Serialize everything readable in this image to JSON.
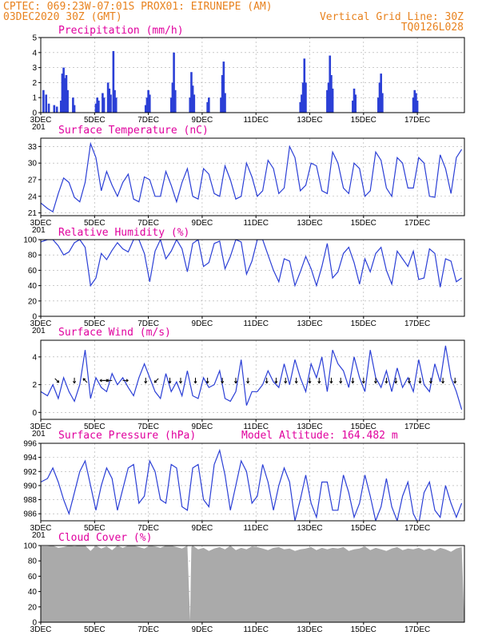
{
  "header": {
    "line1_left": "CPTEC:   069:23W-07:01S   PROX01: EIRUNEPE (AM)",
    "line2_left": "03DEC2020 30Z (GMT)",
    "line2_right": "Vertical Grid Line: 30Z",
    "line3_right": "TQ0126L028"
  },
  "colors": {
    "header": "#e8821e",
    "title": "#e0009e",
    "series": "#2b3fd6",
    "cloud": "#aaaaaa"
  },
  "x_axis": {
    "start_label_fragment": "201",
    "ticks": [
      "3DEC",
      "5DEC",
      "7DEC",
      "9DEC",
      "11DEC",
      "13DEC",
      "15DEC",
      "17DEC"
    ]
  },
  "chart_data": [
    {
      "id": "precip",
      "type": "bar",
      "title": "Precipitation (mm/h)",
      "ylim": [
        0,
        5
      ],
      "yticks": [
        0,
        1,
        2,
        3,
        4,
        5
      ],
      "days_span": [
        3,
        18.75
      ],
      "events": [
        {
          "day": 3.1,
          "value": 1.5
        },
        {
          "day": 3.2,
          "value": 1.2
        },
        {
          "day": 3.3,
          "value": 0.6
        },
        {
          "day": 3.5,
          "value": 0.5
        },
        {
          "day": 3.6,
          "value": 0.4
        },
        {
          "day": 3.75,
          "value": 0.8
        },
        {
          "day": 3.8,
          "value": 2.6
        },
        {
          "day": 3.85,
          "value": 3.0
        },
        {
          "day": 3.9,
          "value": 2.3
        },
        {
          "day": 3.95,
          "value": 2.5
        },
        {
          "day": 4.0,
          "value": 1.5
        },
        {
          "day": 4.2,
          "value": 1.0
        },
        {
          "day": 4.25,
          "value": 0.5
        },
        {
          "day": 5.05,
          "value": 0.6
        },
        {
          "day": 5.1,
          "value": 1.0
        },
        {
          "day": 5.15,
          "value": 0.8
        },
        {
          "day": 5.3,
          "value": 1.3
        },
        {
          "day": 5.35,
          "value": 1.0
        },
        {
          "day": 5.5,
          "value": 2.0
        },
        {
          "day": 5.55,
          "value": 1.6
        },
        {
          "day": 5.6,
          "value": 1.2
        },
        {
          "day": 5.7,
          "value": 4.1
        },
        {
          "day": 5.75,
          "value": 1.5
        },
        {
          "day": 5.8,
          "value": 1.0
        },
        {
          "day": 6.9,
          "value": 0.5
        },
        {
          "day": 6.95,
          "value": 1.0
        },
        {
          "day": 7.0,
          "value": 1.5
        },
        {
          "day": 7.05,
          "value": 1.2
        },
        {
          "day": 7.85,
          "value": 1.0
        },
        {
          "day": 7.9,
          "value": 2.0
        },
        {
          "day": 7.95,
          "value": 4.0
        },
        {
          "day": 8.0,
          "value": 1.5
        },
        {
          "day": 8.55,
          "value": 1.0
        },
        {
          "day": 8.6,
          "value": 2.7
        },
        {
          "day": 8.65,
          "value": 1.8
        },
        {
          "day": 8.7,
          "value": 1.2
        },
        {
          "day": 9.2,
          "value": 0.7
        },
        {
          "day": 9.25,
          "value": 1.0
        },
        {
          "day": 9.7,
          "value": 1.0
        },
        {
          "day": 9.75,
          "value": 2.5
        },
        {
          "day": 9.8,
          "value": 3.4
        },
        {
          "day": 9.85,
          "value": 1.3
        },
        {
          "day": 12.65,
          "value": 0.7
        },
        {
          "day": 12.7,
          "value": 1.2
        },
        {
          "day": 12.75,
          "value": 2.0
        },
        {
          "day": 12.8,
          "value": 3.6
        },
        {
          "day": 12.85,
          "value": 2.0
        },
        {
          "day": 13.65,
          "value": 1.5
        },
        {
          "day": 13.7,
          "value": 2.0
        },
        {
          "day": 13.75,
          "value": 3.8
        },
        {
          "day": 13.8,
          "value": 2.5
        },
        {
          "day": 13.85,
          "value": 1.6
        },
        {
          "day": 14.6,
          "value": 0.8
        },
        {
          "day": 14.65,
          "value": 1.6
        },
        {
          "day": 14.7,
          "value": 1.2
        },
        {
          "day": 15.55,
          "value": 1.0
        },
        {
          "day": 15.6,
          "value": 2.0
        },
        {
          "day": 15.65,
          "value": 2.6
        },
        {
          "day": 15.7,
          "value": 1.3
        },
        {
          "day": 16.85,
          "value": 1.0
        },
        {
          "day": 16.9,
          "value": 1.5
        },
        {
          "day": 16.95,
          "value": 1.3
        },
        {
          "day": 17.0,
          "value": 0.8
        }
      ]
    },
    {
      "id": "temp",
      "type": "line",
      "title": "Surface Temperature (nC)",
      "ylim": [
        20.5,
        34.5
      ],
      "yticks": [
        21,
        24,
        27,
        30,
        33
      ],
      "days": [
        3.0,
        3.25,
        3.45,
        3.65,
        3.85,
        4.05,
        4.25,
        4.45,
        4.65,
        4.85,
        5.05,
        5.25,
        5.45,
        5.65,
        5.85,
        6.05,
        6.25,
        6.45,
        6.65,
        6.85,
        7.05,
        7.25,
        7.45,
        7.65,
        7.85,
        8.05,
        8.25,
        8.45,
        8.65,
        8.85,
        9.05,
        9.25,
        9.45,
        9.65,
        9.85,
        10.05,
        10.25,
        10.45,
        10.65,
        10.85,
        11.05,
        11.25,
        11.45,
        11.65,
        11.85,
        12.05,
        12.25,
        12.45,
        12.65,
        12.85,
        13.05,
        13.25,
        13.45,
        13.65,
        13.85,
        14.05,
        14.25,
        14.45,
        14.65,
        14.85,
        15.05,
        15.25,
        15.45,
        15.65,
        15.85,
        16.05,
        16.25,
        16.45,
        16.65,
        16.85,
        17.05,
        17.25,
        17.45,
        17.65,
        17.85,
        18.05,
        18.25,
        18.45,
        18.65
      ],
      "values": [
        22.8,
        21.8,
        21.2,
        24.5,
        27.3,
        26.5,
        23.8,
        23.0,
        26.5,
        33.5,
        31.0,
        25.0,
        28.5,
        26.0,
        24.0,
        26.5,
        28.0,
        23.5,
        23.0,
        27.5,
        27.0,
        24.0,
        24.0,
        28.5,
        26.0,
        23.0,
        26.5,
        29.0,
        24.0,
        23.5,
        29.0,
        28.0,
        24.5,
        24.0,
        29.5,
        27.0,
        23.5,
        24.0,
        30.0,
        27.5,
        24.0,
        25.0,
        30.5,
        29.0,
        24.5,
        25.5,
        33.0,
        31.0,
        25.0,
        26.0,
        30.0,
        29.5,
        25.0,
        24.5,
        32.0,
        30.0,
        25.5,
        24.5,
        30.0,
        29.0,
        24.0,
        25.0,
        32.0,
        30.5,
        25.5,
        24.0,
        31.0,
        30.0,
        25.5,
        25.5,
        31.0,
        30.0,
        24.0,
        23.8,
        31.5,
        29.0,
        24.5,
        31.0,
        32.5
      ]
    },
    {
      "id": "rh",
      "type": "line",
      "title": "Relative Humidity (%)",
      "ylim": [
        0,
        100
      ],
      "yticks": [
        0,
        20,
        40,
        60,
        80,
        100
      ],
      "days": [
        3.0,
        3.25,
        3.45,
        3.65,
        3.85,
        4.05,
        4.25,
        4.45,
        4.65,
        4.85,
        5.05,
        5.25,
        5.45,
        5.65,
        5.85,
        6.05,
        6.25,
        6.45,
        6.65,
        6.85,
        7.05,
        7.25,
        7.45,
        7.65,
        7.85,
        8.05,
        8.25,
        8.45,
        8.65,
        8.85,
        9.05,
        9.25,
        9.45,
        9.65,
        9.85,
        10.05,
        10.25,
        10.45,
        10.65,
        10.85,
        11.05,
        11.25,
        11.45,
        11.65,
        11.85,
        12.05,
        12.25,
        12.45,
        12.65,
        12.85,
        13.05,
        13.25,
        13.45,
        13.65,
        13.85,
        14.05,
        14.25,
        14.45,
        14.65,
        14.85,
        15.05,
        15.25,
        15.45,
        15.65,
        15.85,
        16.05,
        16.25,
        16.45,
        16.65,
        16.85,
        17.05,
        17.25,
        17.45,
        17.65,
        17.85,
        18.05,
        18.25,
        18.45,
        18.65
      ],
      "values": [
        97,
        100,
        100,
        92,
        80,
        84,
        96,
        100,
        90,
        40,
        50,
        82,
        74,
        86,
        96,
        88,
        84,
        100,
        100,
        82,
        45,
        85,
        100,
        75,
        85,
        100,
        88,
        58,
        95,
        100,
        65,
        70,
        95,
        98,
        62,
        78,
        100,
        97,
        55,
        72,
        100,
        100,
        80,
        60,
        45,
        75,
        72,
        40,
        58,
        78,
        62,
        40,
        65,
        95,
        50,
        58,
        82,
        90,
        70,
        42,
        75,
        58,
        82,
        90,
        60,
        42,
        85,
        75,
        65,
        85,
        48,
        50,
        88,
        82,
        38,
        75,
        72,
        45,
        50
      ]
    },
    {
      "id": "wind",
      "type": "line",
      "title": "Surface Wind (m/s)",
      "ylim": [
        -0.5,
        5.2
      ],
      "yticks": [
        0,
        2,
        4
      ],
      "days": [
        3.0,
        3.25,
        3.45,
        3.65,
        3.85,
        4.05,
        4.25,
        4.45,
        4.65,
        4.85,
        5.05,
        5.25,
        5.45,
        5.65,
        5.85,
        6.05,
        6.25,
        6.45,
        6.65,
        6.85,
        7.05,
        7.25,
        7.45,
        7.65,
        7.85,
        8.05,
        8.25,
        8.45,
        8.65,
        8.85,
        9.05,
        9.25,
        9.45,
        9.65,
        9.85,
        10.05,
        10.25,
        10.45,
        10.65,
        10.85,
        11.05,
        11.25,
        11.45,
        11.65,
        11.85,
        12.05,
        12.25,
        12.45,
        12.65,
        12.85,
        13.05,
        13.25,
        13.45,
        13.65,
        13.85,
        14.05,
        14.25,
        14.45,
        14.65,
        14.85,
        15.05,
        15.25,
        15.45,
        15.65,
        15.85,
        16.05,
        16.25,
        16.45,
        16.65,
        16.85,
        17.05,
        17.25,
        17.45,
        17.65,
        17.85,
        18.05,
        18.25,
        18.45,
        18.65
      ],
      "values": [
        1.5,
        1.2,
        2.0,
        1.0,
        2.5,
        1.5,
        0.8,
        2.0,
        4.5,
        1.0,
        2.5,
        1.8,
        1.5,
        2.8,
        2.0,
        2.5,
        1.8,
        1.2,
        2.5,
        3.5,
        2.5,
        1.5,
        1.0,
        2.8,
        1.5,
        2.2,
        1.2,
        3.0,
        1.2,
        1.0,
        2.5,
        1.8,
        2.0,
        3.0,
        1.0,
        0.8,
        1.5,
        3.8,
        0.5,
        1.5,
        1.5,
        2.0,
        3.0,
        2.2,
        1.8,
        3.5,
        2.0,
        3.8,
        2.5,
        1.5,
        3.5,
        2.5,
        4.0,
        1.5,
        4.5,
        3.5,
        3.0,
        1.8,
        4.0,
        2.5,
        1.5,
        4.5,
        2.5,
        1.8,
        3.0,
        1.5,
        3.2,
        1.8,
        2.5,
        1.5,
        3.8,
        2.0,
        1.5,
        3.5,
        2.2,
        4.8,
        2.5,
        1.5,
        0.2
      ],
      "arrows": [
        {
          "day": 3.6,
          "dir": "SE"
        },
        {
          "day": 4.25,
          "dir": "S"
        },
        {
          "day": 4.65,
          "dir": "NW"
        },
        {
          "day": 5.3,
          "dir": "W"
        },
        {
          "day": 5.4,
          "dir": "E"
        },
        {
          "day": 5.55,
          "dir": "W"
        },
        {
          "day": 6.15,
          "dir": "E"
        },
        {
          "day": 6.9,
          "dir": "S"
        },
        {
          "day": 7.3,
          "dir": "SW"
        },
        {
          "day": 7.8,
          "dir": "S"
        },
        {
          "day": 8.2,
          "dir": "S"
        },
        {
          "day": 8.75,
          "dir": "S"
        },
        {
          "day": 9.2,
          "dir": "S"
        },
        {
          "day": 9.75,
          "dir": "S"
        },
        {
          "day": 10.25,
          "dir": "S"
        },
        {
          "day": 10.7,
          "dir": "S"
        },
        {
          "day": 11.4,
          "dir": "S"
        },
        {
          "day": 11.75,
          "dir": "S"
        },
        {
          "day": 12.1,
          "dir": "S"
        },
        {
          "day": 12.5,
          "dir": "S"
        },
        {
          "day": 13.0,
          "dir": "S"
        },
        {
          "day": 13.35,
          "dir": "S"
        },
        {
          "day": 13.8,
          "dir": "S"
        },
        {
          "day": 14.15,
          "dir": "S"
        },
        {
          "day": 14.6,
          "dir": "S"
        },
        {
          "day": 15.0,
          "dir": "S"
        },
        {
          "day": 15.45,
          "dir": "S"
        },
        {
          "day": 15.85,
          "dir": "S"
        },
        {
          "day": 16.2,
          "dir": "S"
        },
        {
          "day": 16.7,
          "dir": "S"
        },
        {
          "day": 17.1,
          "dir": "S"
        },
        {
          "day": 17.5,
          "dir": "S"
        },
        {
          "day": 17.95,
          "dir": "S"
        },
        {
          "day": 18.4,
          "dir": "S"
        }
      ]
    },
    {
      "id": "pres",
      "type": "line",
      "title": "Surface Pressure (hPa)",
      "subtitle": "Model Altitude: 164.482 m",
      "ylim": [
        985,
        996
      ],
      "yticks": [
        986,
        988,
        990,
        992,
        994,
        996
      ],
      "days": [
        3.0,
        3.25,
        3.45,
        3.65,
        3.85,
        4.05,
        4.25,
        4.45,
        4.65,
        4.85,
        5.05,
        5.25,
        5.45,
        5.65,
        5.85,
        6.05,
        6.25,
        6.45,
        6.65,
        6.85,
        7.05,
        7.25,
        7.45,
        7.65,
        7.85,
        8.05,
        8.25,
        8.45,
        8.65,
        8.85,
        9.05,
        9.25,
        9.45,
        9.65,
        9.85,
        10.05,
        10.25,
        10.45,
        10.65,
        10.85,
        11.05,
        11.25,
        11.45,
        11.65,
        11.85,
        12.05,
        12.25,
        12.45,
        12.65,
        12.85,
        13.05,
        13.25,
        13.45,
        13.65,
        13.85,
        14.05,
        14.25,
        14.45,
        14.65,
        14.85,
        15.05,
        15.25,
        15.45,
        15.65,
        15.85,
        16.05,
        16.25,
        16.45,
        16.65,
        16.85,
        17.05,
        17.25,
        17.45,
        17.65,
        17.85,
        18.05,
        18.25,
        18.45,
        18.65
      ],
      "values": [
        990.5,
        991.0,
        992.5,
        990.5,
        988.0,
        986.0,
        989.0,
        992.0,
        993.5,
        990.0,
        986.5,
        990.0,
        992.5,
        991.0,
        986.5,
        989.5,
        992.5,
        993.0,
        987.5,
        988.5,
        993.5,
        992.0,
        988.0,
        987.5,
        993.0,
        992.5,
        987.0,
        986.5,
        992.5,
        993.0,
        988.0,
        987.0,
        993.0,
        995.0,
        991.5,
        986.5,
        990.0,
        993.5,
        992.0,
        987.5,
        988.5,
        993.0,
        990.5,
        986.5,
        990.0,
        992.5,
        990.5,
        985.0,
        988.0,
        991.5,
        987.5,
        985.5,
        990.5,
        990.5,
        986.5,
        986.5,
        991.5,
        989.0,
        985.5,
        987.5,
        991.5,
        988.5,
        985.0,
        987.0,
        991.0,
        987.0,
        985.0,
        988.5,
        990.5,
        986.0,
        984.5,
        989.0,
        990.5,
        986.5,
        985.5,
        990.0,
        987.5,
        985.5,
        987.5
      ]
    },
    {
      "id": "cloud",
      "type": "area",
      "title": "Cloud Cover (%)",
      "ylim": [
        0,
        100
      ],
      "yticks": [
        0,
        20,
        40,
        60,
        80,
        100
      ],
      "days": [
        3.0,
        3.25,
        3.45,
        3.65,
        3.85,
        4.05,
        4.25,
        4.45,
        4.65,
        4.85,
        5.05,
        5.25,
        5.45,
        5.65,
        5.85,
        6.05,
        6.25,
        6.45,
        6.65,
        6.85,
        7.05,
        7.25,
        7.45,
        7.65,
        7.85,
        8.05,
        8.25,
        8.45,
        8.55,
        8.6,
        8.65,
        8.85,
        9.05,
        9.25,
        9.45,
        9.65,
        9.85,
        10.05,
        10.25,
        10.45,
        10.65,
        10.85,
        11.05,
        11.25,
        11.45,
        11.65,
        11.85,
        12.05,
        12.25,
        12.45,
        12.65,
        12.85,
        13.05,
        13.25,
        13.45,
        13.65,
        13.85,
        14.05,
        14.25,
        14.45,
        14.65,
        14.85,
        15.05,
        15.25,
        15.45,
        15.65,
        15.85,
        16.05,
        16.25,
        16.45,
        16.65,
        16.85,
        17.05,
        17.25,
        17.45,
        17.65,
        17.85,
        18.05,
        18.25,
        18.45,
        18.65
      ],
      "values": [
        99,
        99,
        100,
        97,
        98,
        100,
        99,
        100,
        100,
        93,
        100,
        96,
        99,
        94,
        100,
        97,
        100,
        100,
        98,
        96,
        100,
        99,
        97,
        100,
        100,
        98,
        96,
        100,
        2,
        98,
        100,
        95,
        97,
        93,
        96,
        98,
        95,
        100,
        94,
        97,
        95,
        99,
        98,
        96,
        94,
        97,
        98,
        95,
        96,
        93,
        95,
        96,
        98,
        94,
        97,
        95,
        97,
        96,
        98,
        93,
        95,
        96,
        99,
        94,
        97,
        95,
        93,
        96,
        98,
        94,
        96,
        95,
        97,
        94,
        96,
        93,
        97,
        95,
        92,
        96,
        98
      ]
    }
  ]
}
